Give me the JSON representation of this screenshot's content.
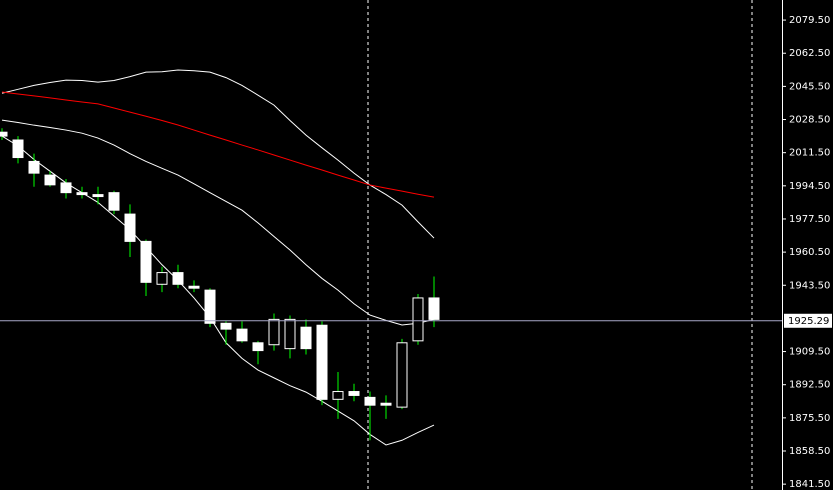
{
  "chart_data": {
    "type": "candlestick",
    "ylim": [
      1838.5,
      2089.8
    ],
    "yticks": [
      {
        "value": 2079.5,
        "label": "2079.50"
      },
      {
        "value": 2062.5,
        "label": "2062.50"
      },
      {
        "value": 2045.5,
        "label": "2045.50"
      },
      {
        "value": 2028.5,
        "label": "2028.50"
      },
      {
        "value": 2011.5,
        "label": "2011.50"
      },
      {
        "value": 1994.5,
        "label": "1994.50"
      },
      {
        "value": 1977.5,
        "label": "1977.50"
      },
      {
        "value": 1960.5,
        "label": "1960.50"
      },
      {
        "value": 1943.5,
        "label": "1943.50"
      },
      {
        "value": 1909.5,
        "label": "1909.50"
      },
      {
        "value": 1892.5,
        "label": "1892.50"
      },
      {
        "value": 1875.5,
        "label": "1875.50"
      },
      {
        "value": 1858.5,
        "label": "1858.50"
      },
      {
        "value": 1841.5,
        "label": "1841.50"
      }
    ],
    "current_price": 1925.29,
    "up_color": "#000000",
    "down_color": "#ffffff",
    "wick_color": "#00ff00",
    "open": [
      2022,
      2018,
      2007,
      2000,
      1996,
      1991,
      1990,
      1991,
      1980,
      1966,
      1944,
      1950,
      1943,
      1941,
      1924,
      1921,
      1914,
      1913,
      1911,
      1922,
      1923,
      1885,
      1889,
      1886,
      1883,
      1881,
      1915,
      1937
    ],
    "high": [
      2024,
      2020,
      2011,
      2002,
      1998,
      1994,
      1994,
      1992,
      1985,
      1967,
      1953,
      1954,
      1946,
      1942,
      1925,
      1925,
      1915,
      1929,
      1928,
      1926,
      1925,
      1899,
      1893,
      1889,
      1887,
      1916,
      1939,
      1948
    ],
    "low": [
      2018,
      2006,
      1994,
      1994,
      1988,
      1988,
      1985,
      1980,
      1958,
      1938,
      1940,
      1942,
      1940,
      1922,
      1913,
      1914,
      1903,
      1910,
      1906,
      1908,
      1882,
      1875,
      1884,
      1864,
      1875,
      1880,
      1913,
      1922
    ],
    "close": [
      2020,
      2009,
      2001,
      1995,
      1991,
      1990,
      1989,
      1982,
      1966,
      1945,
      1950,
      1944,
      1942,
      1924,
      1921,
      1915,
      1910,
      1926,
      1926,
      1911,
      1885,
      1889,
      1887,
      1882,
      1882,
      1914,
      1937,
      1926
    ],
    "lines": [
      {
        "color": "#ffffff",
        "values": [
          2042,
          2044,
          2046,
          2047.5,
          2048.7,
          2048.5,
          2047.7,
          2048.5,
          2050.5,
          2052.8,
          2053,
          2053.9,
          2053.5,
          2052.8,
          2050,
          2046,
          2041,
          2035.9,
          2028,
          2020.5,
          2014,
          2007.7,
          2001,
          1994.9,
          1990,
          1984.6,
          1976,
          1967.7
        ]
      },
      {
        "color": "#ffffff",
        "values": [
          2028.2,
          2027,
          2025.6,
          2024.4,
          2023.1,
          2021.5,
          2019,
          2015.4,
          2011,
          2007,
          2003.5,
          2000,
          1995.5,
          1991,
          1986.5,
          1982,
          1975.5,
          1968.5,
          1961.6,
          1954,
          1947,
          1941,
          1934,
          1928.2,
          1925.5,
          1923.1,
          1924,
          1926
        ]
      },
      {
        "color": "#ffffff",
        "values": [
          2020,
          2015,
          2008,
          2002,
          1996,
          1991,
          1986,
          1979,
          1972,
          1963,
          1954,
          1946,
          1937,
          1927,
          1914,
          1906,
          1900,
          1896,
          1892,
          1888.7,
          1884,
          1879,
          1874,
          1867,
          1861.6,
          1864,
          1868,
          1871.8
        ]
      },
      {
        "color": "#ff0000",
        "values": [
          2042.6,
          2041.6,
          2040.6,
          2039.6,
          2038.5,
          2037.5,
          2036.5,
          2034.4,
          2032.3,
          2030.2,
          2028,
          2025.7,
          2023.1,
          2020.5,
          2018,
          2015.4,
          2012.9,
          2010.3,
          2007.7,
          2005.1,
          2002.6,
          2000,
          1997.5,
          1994.9,
          1993.3,
          1991.8,
          1990.2,
          1988.7
        ]
      }
    ]
  }
}
